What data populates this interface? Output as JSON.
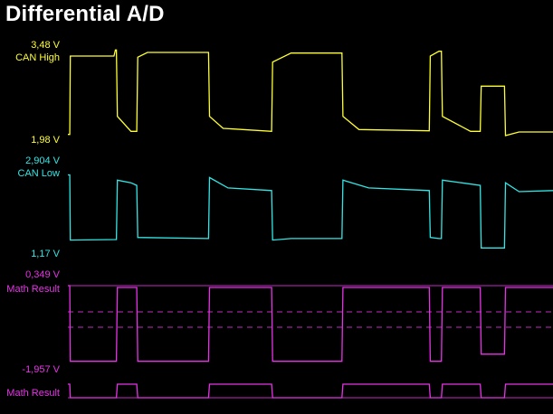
{
  "title": "Differential A/D",
  "colors": {
    "background": "#000000",
    "can_high": "#ffff33",
    "can_low": "#33e6e6",
    "math": "#e633e6",
    "title": "#ffffff"
  },
  "channels": {
    "can_high": {
      "name": "CAN High",
      "max_label": "3,48 V",
      "min_label": "1,98 V"
    },
    "can_low": {
      "name": "CAN Low",
      "max_label": "2,904 V",
      "min_label": "1,17 V"
    },
    "math": {
      "name": "Math Result",
      "max_label": "0,349 V",
      "min_label": "-1,957 V"
    },
    "digital": {
      "name": "Math Result"
    }
  },
  "chart_data": {
    "type": "line",
    "title": "Differential A/D",
    "grid": false,
    "legend": "left",
    "x_unit": "relative time (0-1)",
    "series": [
      {
        "name": "CAN High",
        "ylim": [
          1.98,
          3.48
        ],
        "points": [
          [
            0.0,
            2.0
          ],
          [
            0.004,
            2.0
          ],
          [
            0.005,
            3.3
          ],
          [
            0.095,
            3.3
          ],
          [
            0.098,
            3.4
          ],
          [
            0.1,
            3.4
          ],
          [
            0.102,
            2.3
          ],
          [
            0.13,
            2.05
          ],
          [
            0.142,
            2.05
          ],
          [
            0.144,
            3.28
          ],
          [
            0.164,
            3.36
          ],
          [
            0.29,
            3.36
          ],
          [
            0.292,
            2.3
          ],
          [
            0.32,
            2.1
          ],
          [
            0.42,
            2.05
          ],
          [
            0.422,
            3.2
          ],
          [
            0.46,
            3.35
          ],
          [
            0.565,
            3.35
          ],
          [
            0.567,
            2.3
          ],
          [
            0.6,
            2.08
          ],
          [
            0.745,
            2.06
          ],
          [
            0.747,
            3.3
          ],
          [
            0.765,
            3.38
          ],
          [
            0.77,
            3.38
          ],
          [
            0.772,
            2.3
          ],
          [
            0.83,
            2.05
          ],
          [
            0.85,
            2.05
          ],
          [
            0.852,
            2.8
          ],
          [
            0.9,
            2.8
          ],
          [
            0.902,
            1.98
          ],
          [
            0.93,
            2.04
          ],
          [
            1.0,
            2.04
          ]
        ]
      },
      {
        "name": "CAN Low",
        "ylim": [
          1.17,
          2.904
        ],
        "points": [
          [
            0.0,
            2.6
          ],
          [
            0.004,
            2.6
          ],
          [
            0.005,
            1.35
          ],
          [
            0.1,
            1.36
          ],
          [
            0.102,
            2.5
          ],
          [
            0.13,
            2.45
          ],
          [
            0.142,
            2.4
          ],
          [
            0.144,
            1.4
          ],
          [
            0.29,
            1.38
          ],
          [
            0.292,
            2.55
          ],
          [
            0.33,
            2.35
          ],
          [
            0.42,
            2.3
          ],
          [
            0.422,
            1.35
          ],
          [
            0.46,
            1.38
          ],
          [
            0.565,
            1.38
          ],
          [
            0.567,
            2.5
          ],
          [
            0.62,
            2.35
          ],
          [
            0.745,
            2.3
          ],
          [
            0.747,
            1.4
          ],
          [
            0.765,
            1.38
          ],
          [
            0.77,
            1.38
          ],
          [
            0.772,
            2.5
          ],
          [
            0.85,
            2.4
          ],
          [
            0.852,
            1.2
          ],
          [
            0.9,
            1.2
          ],
          [
            0.902,
            2.45
          ],
          [
            0.93,
            2.28
          ],
          [
            1.0,
            2.3
          ]
        ]
      },
      {
        "name": "Math Result",
        "ylim": [
          -1.957,
          0.349
        ],
        "points": [
          [
            0.0,
            0.349
          ],
          [
            0.004,
            0.349
          ],
          [
            0.005,
            -1.75
          ],
          [
            0.1,
            -1.75
          ],
          [
            0.102,
            0.3
          ],
          [
            0.142,
            0.3
          ],
          [
            0.144,
            -1.75
          ],
          [
            0.29,
            -1.75
          ],
          [
            0.292,
            0.3
          ],
          [
            0.42,
            0.3
          ],
          [
            0.422,
            -1.75
          ],
          [
            0.565,
            -1.75
          ],
          [
            0.567,
            0.3
          ],
          [
            0.745,
            0.3
          ],
          [
            0.747,
            -1.75
          ],
          [
            0.77,
            -1.75
          ],
          [
            0.772,
            0.3
          ],
          [
            0.85,
            0.3
          ],
          [
            0.852,
            -1.55
          ],
          [
            0.9,
            -1.55
          ],
          [
            0.902,
            0.3
          ],
          [
            1.0,
            0.3
          ]
        ]
      },
      {
        "name": "Math Result (digital)",
        "ylim": [
          0,
          1
        ],
        "points": [
          [
            0.0,
            1
          ],
          [
            0.004,
            1
          ],
          [
            0.005,
            0
          ],
          [
            0.1,
            0
          ],
          [
            0.102,
            1
          ],
          [
            0.142,
            1
          ],
          [
            0.144,
            0
          ],
          [
            0.29,
            0
          ],
          [
            0.292,
            1
          ],
          [
            0.42,
            1
          ],
          [
            0.422,
            0
          ],
          [
            0.565,
            0
          ],
          [
            0.567,
            1
          ],
          [
            0.745,
            1
          ],
          [
            0.747,
            0
          ],
          [
            0.77,
            0
          ],
          [
            0.772,
            1
          ],
          [
            0.85,
            1
          ],
          [
            0.852,
            0
          ],
          [
            0.9,
            0
          ],
          [
            0.902,
            1
          ],
          [
            1.0,
            1
          ]
        ]
      }
    ]
  }
}
